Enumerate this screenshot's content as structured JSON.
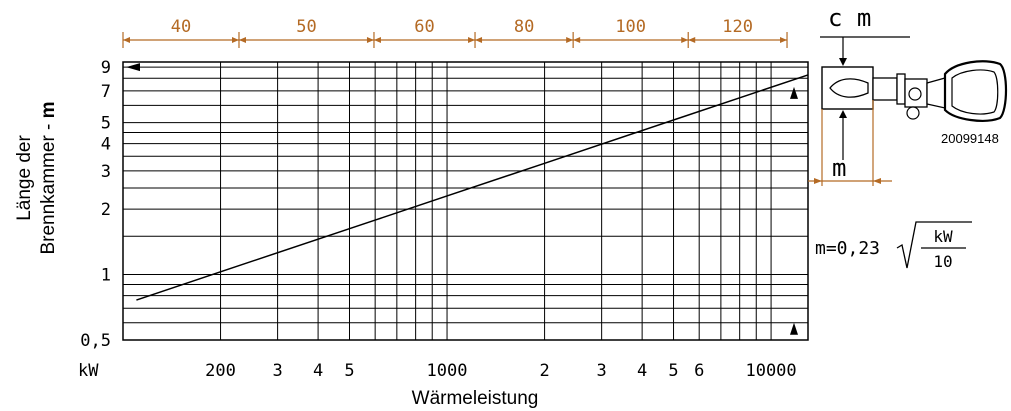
{
  "colors": {
    "dimension": "#b46a24",
    "ink": "#000000"
  },
  "chart_data": {
    "type": "line",
    "x_scale": "log",
    "y_scale": "log",
    "xlim": [
      100,
      13000
    ],
    "ylim": [
      0.5,
      9.5
    ],
    "grid": true,
    "xlabel": "Wärmeleistung",
    "ylabel_lines": [
      "Länge der",
      "Brennkammer - "
    ],
    "ylabel_bold": "m",
    "x_unit_label": "kW",
    "x_ticks": [
      {
        "value": 200,
        "label": "200"
      },
      {
        "value": 300,
        "label": "3"
      },
      {
        "value": 400,
        "label": "4"
      },
      {
        "value": 500,
        "label": "5"
      },
      {
        "value": 1000,
        "label": "1000"
      },
      {
        "value": 2000,
        "label": "2"
      },
      {
        "value": 3000,
        "label": "3"
      },
      {
        "value": 4000,
        "label": "4"
      },
      {
        "value": 5000,
        "label": "5"
      },
      {
        "value": 6000,
        "label": "6"
      },
      {
        "value": 10000,
        "label": "10000"
      }
    ],
    "y_ticks": [
      {
        "value": 0.5,
        "label": "0,5"
      },
      {
        "value": 1,
        "label": "1"
      },
      {
        "value": 2,
        "label": "2"
      },
      {
        "value": 3,
        "label": "3"
      },
      {
        "value": 4,
        "label": "4"
      },
      {
        "value": 5,
        "label": "5"
      },
      {
        "value": 7,
        "label": "7"
      },
      {
        "value": 9,
        "label": "9"
      }
    ],
    "series": [
      {
        "x": [
          110,
          200,
          600,
          1000,
          2000,
          5000,
          13000
        ],
        "y": [
          0.763,
          1.03,
          1.78,
          2.3,
          3.25,
          5.14,
          8.29
        ]
      }
    ],
    "top_scale": {
      "unit_label": "c m",
      "boundaries_kw": [
        100,
        228,
        595,
        1220,
        2450,
        5550,
        11200
      ],
      "labels": [
        "40",
        "50",
        "60",
        "80",
        "100",
        "120"
      ]
    },
    "formula": {
      "lhs": "m=0,23",
      "numerator": "kW",
      "denominator": "10"
    }
  },
  "diagram": {
    "code": "20099148",
    "m_label": "m",
    "cm_label": "c m"
  }
}
